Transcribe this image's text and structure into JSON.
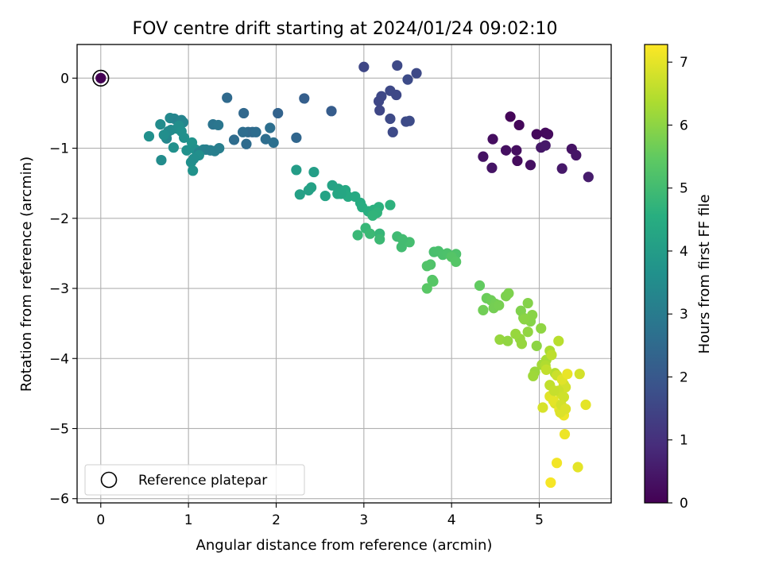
{
  "chart_data": {
    "type": "scatter",
    "title": "FOV centre drift starting at 2024/01/24 09:02:10",
    "xlabel": "Angular distance from reference (arcmin)",
    "ylabel": "Rotation from reference (arcmin)",
    "xlim": [
      -0.27,
      5.82
    ],
    "ylim": [
      -6.06,
      0.48
    ],
    "xticks": [
      "0",
      "1",
      "2",
      "3",
      "4",
      "5"
    ],
    "yticks": [
      "0",
      "−1",
      "−2",
      "−3",
      "−4",
      "−5",
      "−6"
    ],
    "grid": true,
    "colorbar": {
      "label": "Hours from first FF file",
      "range": [
        0,
        7.28
      ],
      "ticks": [
        "0",
        "1",
        "2",
        "3",
        "4",
        "5",
        "6",
        "7"
      ],
      "colormap": "viridis"
    },
    "legend": {
      "position": "lower-left",
      "entries": [
        "Reference platepar"
      ]
    },
    "reference_point": {
      "x": 0,
      "y": 0,
      "hours": 0
    },
    "series": [
      {
        "x": [
          3.0,
          3.38,
          3.6,
          3.5,
          3.3,
          3.37,
          3.2,
          3.17,
          3.18,
          3.3,
          3.48,
          3.52,
          3.33
        ],
        "y": [
          0.16,
          0.18,
          0.07,
          -0.02,
          -0.18,
          -0.24,
          -0.26,
          -0.33,
          -0.46,
          -0.58,
          -0.62,
          -0.61,
          -0.77
        ],
        "hours": [
          1.55,
          1.6,
          1.62,
          1.65,
          1.6,
          1.58,
          1.57,
          1.56,
          1.55,
          1.62,
          1.64,
          1.66,
          1.63
        ]
      },
      {
        "x": [
          4.67,
          4.77,
          4.97,
          5.07,
          5.1,
          4.47,
          4.62,
          4.74,
          4.36,
          4.46,
          4.75,
          4.9,
          5.02,
          5.07,
          5.37,
          5.42,
          5.26,
          5.56
        ],
        "y": [
          -0.55,
          -0.67,
          -0.8,
          -0.78,
          -0.8,
          -0.87,
          -1.03,
          -1.03,
          -1.12,
          -1.28,
          -1.18,
          -1.24,
          -0.99,
          -0.96,
          -1.01,
          -1.1,
          -1.29,
          -1.41
        ],
        "hours": [
          0.1,
          0.12,
          0.15,
          0.18,
          0.2,
          0.25,
          0.3,
          0.28,
          0.35,
          0.4,
          0.22,
          0.32,
          0.45,
          0.5,
          0.38,
          0.42,
          0.48,
          0.55
        ]
      },
      {
        "x": [
          2.02,
          2.32,
          2.63,
          1.44,
          1.63,
          1.68,
          1.73,
          1.62,
          1.77,
          1.88,
          1.93,
          1.97,
          1.52,
          1.66,
          2.23,
          1.28,
          1.34
        ],
        "y": [
          -0.5,
          -0.29,
          -0.47,
          -0.28,
          -0.5,
          -0.77,
          -0.77,
          -0.77,
          -0.77,
          -0.87,
          -0.71,
          -0.92,
          -0.88,
          -0.94,
          -0.85,
          -0.66,
          -0.67
        ],
        "hours": [
          2.3,
          2.2,
          2.1,
          2.5,
          2.45,
          2.55,
          2.5,
          2.6,
          2.58,
          2.62,
          2.64,
          2.66,
          2.57,
          2.53,
          2.4,
          2.8,
          2.85
        ]
      },
      {
        "x": [
          0.55,
          0.68,
          0.79,
          0.84,
          0.88,
          0.92,
          0.94,
          0.75,
          0.77,
          0.8,
          0.87,
          0.89,
          0.92,
          0.95,
          0.98,
          1.04,
          1.08,
          1.12,
          1.17,
          1.2,
          1.25,
          1.3,
          1.35,
          0.72,
          0.83,
          1.03,
          1.12,
          1.05,
          0.69,
          1.06
        ],
        "y": [
          -0.83,
          -0.66,
          -0.57,
          -0.58,
          -0.62,
          -0.6,
          -0.63,
          -0.86,
          -0.76,
          -0.74,
          -0.72,
          -0.68,
          -0.76,
          -0.85,
          -1.03,
          -0.92,
          -1.02,
          -1.06,
          -1.02,
          -1.02,
          -1.03,
          -1.04,
          -1.0,
          -0.81,
          -0.99,
          -1.2,
          -1.1,
          -1.32,
          -1.17,
          -1.15
        ],
        "hours": [
          3.6,
          3.5,
          3.4,
          3.3,
          3.2,
          3.25,
          3.3,
          3.35,
          3.4,
          3.45,
          3.5,
          3.55,
          3.6,
          3.62,
          3.65,
          3.7,
          3.6,
          3.3,
          3.2,
          3.15,
          3.12,
          3.1,
          3.08,
          3.55,
          3.6,
          3.62,
          3.58,
          3.68,
          3.5,
          3.55
        ]
      },
      {
        "x": [
          2.23,
          2.43,
          2.64,
          2.71,
          2.7,
          2.79,
          2.82,
          2.27,
          2.37,
          2.4,
          2.56,
          2.74,
          2.9,
          2.96,
          2.98,
          3.05,
          3.11,
          3.17,
          3.3,
          3.15,
          3.1,
          3.18,
          3.02,
          2.93,
          3.07,
          3.18,
          3.38,
          3.43,
          3.52,
          3.44
        ],
        "y": [
          -1.31,
          -1.34,
          -1.53,
          -1.58,
          -1.65,
          -1.6,
          -1.69,
          -1.66,
          -1.6,
          -1.56,
          -1.68,
          -1.65,
          -1.69,
          -1.78,
          -1.84,
          -1.9,
          -1.88,
          -1.84,
          -1.81,
          -1.92,
          -1.96,
          -2.22,
          -2.14,
          -2.24,
          -2.22,
          -2.3,
          -2.26,
          -2.41,
          -2.34,
          -2.3
        ],
        "hours": [
          4.0,
          4.05,
          4.2,
          4.25,
          4.3,
          4.35,
          4.4,
          4.1,
          4.12,
          4.15,
          4.2,
          4.3,
          4.4,
          4.45,
          4.5,
          4.55,
          4.6,
          4.62,
          4.65,
          4.7,
          4.72,
          4.8,
          4.82,
          4.85,
          4.88,
          4.9,
          4.95,
          5.0,
          5.05,
          5.0
        ]
      },
      {
        "x": [
          3.8,
          3.85,
          3.9,
          3.95,
          4.05,
          3.76,
          3.72,
          3.78,
          4.0,
          4.05,
          3.79,
          3.72
        ],
        "y": [
          -2.48,
          -2.47,
          -2.52,
          -2.5,
          -2.51,
          -2.66,
          -2.68,
          -2.88,
          -2.55,
          -2.62,
          -2.9,
          -3.0
        ],
        "hours": [
          5.1,
          5.12,
          5.15,
          5.18,
          5.2,
          5.22,
          5.25,
          5.28,
          5.3,
          5.32,
          5.35,
          5.38
        ]
      },
      {
        "x": [
          4.32,
          4.4,
          4.45,
          4.5,
          4.48,
          4.54,
          4.62,
          4.65,
          4.36,
          4.79,
          4.82,
          4.87,
          4.9,
          4.92,
          4.83,
          4.97,
          5.02,
          4.87,
          4.78,
          4.55,
          4.64,
          4.73,
          4.8,
          4.95,
          4.93,
          5.03,
          5.08,
          5.12,
          5.07,
          5.18,
          5.22,
          5.14,
          5.08,
          5.2,
          5.28,
          5.3,
          5.25,
          5.18,
          5.12,
          5.16,
          5.23,
          5.28,
          5.24,
          5.22,
          5.46,
          5.44,
          5.04,
          5.26,
          5.32,
          5.12,
          5.17,
          5.28,
          5.25,
          5.3
        ],
        "y": [
          -2.96,
          -3.14,
          -3.17,
          -3.22,
          -3.28,
          -3.24,
          -3.11,
          -3.07,
          -3.31,
          -3.32,
          -3.42,
          -3.21,
          -3.47,
          -3.38,
          -3.44,
          -3.82,
          -3.57,
          -3.62,
          -3.72,
          -3.73,
          -3.75,
          -3.65,
          -3.79,
          -4.19,
          -4.25,
          -4.09,
          -4.02,
          -3.89,
          -4.1,
          -4.21,
          -3.75,
          -3.95,
          -4.16,
          -4.24,
          -4.37,
          -4.41,
          -4.51,
          -4.64,
          -4.54,
          -4.6,
          -4.73,
          -4.81,
          -4.77,
          -4.46,
          -4.22,
          -5.55,
          -4.7,
          -4.3,
          -4.22,
          -4.38,
          -4.46,
          -4.55,
          -4.66,
          -4.72
        ],
        "hours": [
          5.5,
          5.6,
          5.65,
          5.7,
          5.72,
          5.75,
          5.8,
          5.82,
          5.68,
          5.85,
          5.88,
          5.9,
          5.92,
          5.95,
          5.98,
          6.0,
          6.02,
          6.05,
          6.08,
          6.1,
          6.05,
          6.12,
          6.1,
          6.15,
          6.2,
          6.25,
          6.3,
          6.35,
          6.4,
          6.45,
          6.5,
          6.55,
          6.6,
          6.7,
          6.75,
          6.8,
          6.85,
          6.9,
          6.95,
          7.0,
          7.05,
          7.1,
          6.9,
          6.7,
          6.8,
          7.0,
          6.85,
          6.95,
          7.05,
          6.6,
          6.65,
          6.75,
          6.8,
          6.9
        ]
      },
      {
        "x": [
          5.29,
          5.2,
          5.13,
          5.53
        ],
        "y": [
          -5.08,
          -5.49,
          -5.77,
          -4.66
        ],
        "hours": [
          7.1,
          7.15,
          7.2,
          7.0
        ]
      }
    ]
  }
}
